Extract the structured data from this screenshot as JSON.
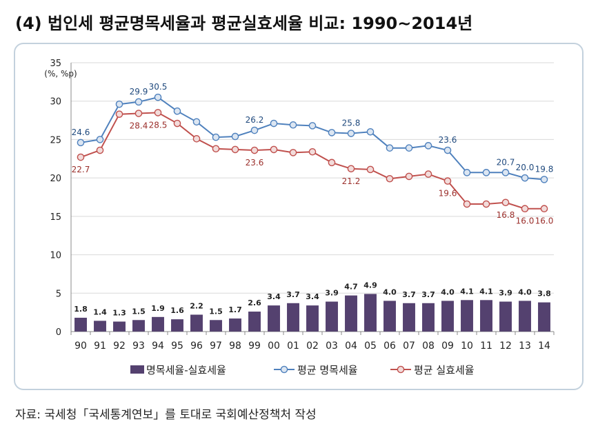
{
  "title": "(4) 법인세 평균명목세율과 평균실효세율 비교: 1990∼2014년",
  "source": "자료: 국세청「국세통계연보」를 토대로 국회예산정책처 작성",
  "chart_data": {
    "type": "bar+line",
    "unit_label": "(%, %p)",
    "categories": [
      "90",
      "91",
      "92",
      "93",
      "94",
      "95",
      "96",
      "97",
      "98",
      "99",
      "00",
      "01",
      "02",
      "03",
      "04",
      "05",
      "06",
      "07",
      "08",
      "09",
      "10",
      "11",
      "12",
      "13",
      "14"
    ],
    "ylim": [
      0,
      35
    ],
    "yticks": [
      0,
      5,
      10,
      15,
      20,
      25,
      30,
      35
    ],
    "grid": true,
    "legend_position": "bottom",
    "series": [
      {
        "name": "명목세율-실효세율",
        "kind": "bar",
        "color": "#54416f",
        "values": [
          1.8,
          1.4,
          1.3,
          1.5,
          1.9,
          1.6,
          2.2,
          1.5,
          1.7,
          2.6,
          3.4,
          3.7,
          3.4,
          3.9,
          4.7,
          4.9,
          4.0,
          3.7,
          3.7,
          4.0,
          4.1,
          4.1,
          3.9,
          4.0,
          3.8
        ],
        "data_labels": [
          "1.8",
          "1.4",
          "1.3",
          "1.5",
          "1.9",
          "1.6",
          "2.2",
          "1.5",
          "1.7",
          "2.6",
          "3.4",
          "3.7",
          "3.4",
          "3.9",
          "4.7",
          "4.9",
          "4.0",
          "3.7",
          "3.7",
          "4.0",
          "4.1",
          "4.1",
          "3.9",
          "4.0",
          "3.8"
        ]
      },
      {
        "name": "평균 명목세율",
        "kind": "line",
        "color": "#4f81bd",
        "marker_fill": "#dce6f2",
        "values": [
          24.6,
          25.0,
          29.6,
          29.9,
          30.5,
          28.7,
          27.3,
          25.3,
          25.4,
          26.2,
          27.1,
          26.9,
          26.8,
          25.9,
          25.8,
          26.0,
          23.9,
          23.9,
          24.2,
          23.6,
          20.7,
          20.7,
          20.7,
          20.0,
          19.8
        ],
        "labels": [
          {
            "i": 0,
            "text": "24.6"
          },
          {
            "i": 3,
            "text": "29.9"
          },
          {
            "i": 4,
            "text": "30.5"
          },
          {
            "i": 9,
            "text": "26.2"
          },
          {
            "i": 14,
            "text": "25.8"
          },
          {
            "i": 19,
            "text": "23.6"
          },
          {
            "i": 22,
            "text": "20.7"
          },
          {
            "i": 23,
            "text": "20.0"
          },
          {
            "i": 24,
            "text": "19.8"
          }
        ]
      },
      {
        "name": "평균 실효세율",
        "kind": "line",
        "color": "#c0504d",
        "marker_fill": "#f2dcdb",
        "values": [
          22.7,
          23.6,
          28.3,
          28.4,
          28.5,
          27.1,
          25.1,
          23.8,
          23.7,
          23.6,
          23.7,
          23.3,
          23.4,
          22.0,
          21.2,
          21.1,
          19.9,
          20.2,
          20.5,
          19.6,
          16.6,
          16.6,
          16.8,
          16.0,
          16.0
        ],
        "labels": [
          {
            "i": 0,
            "text": "22.7"
          },
          {
            "i": 3,
            "text": "28.4"
          },
          {
            "i": 4,
            "text": "28.5"
          },
          {
            "i": 9,
            "text": "23.6"
          },
          {
            "i": 14,
            "text": "21.2"
          },
          {
            "i": 19,
            "text": "19.6"
          },
          {
            "i": 22,
            "text": "16.8"
          },
          {
            "i": 23,
            "text": "16.0"
          },
          {
            "i": 24,
            "text": "16.0"
          }
        ]
      }
    ]
  }
}
